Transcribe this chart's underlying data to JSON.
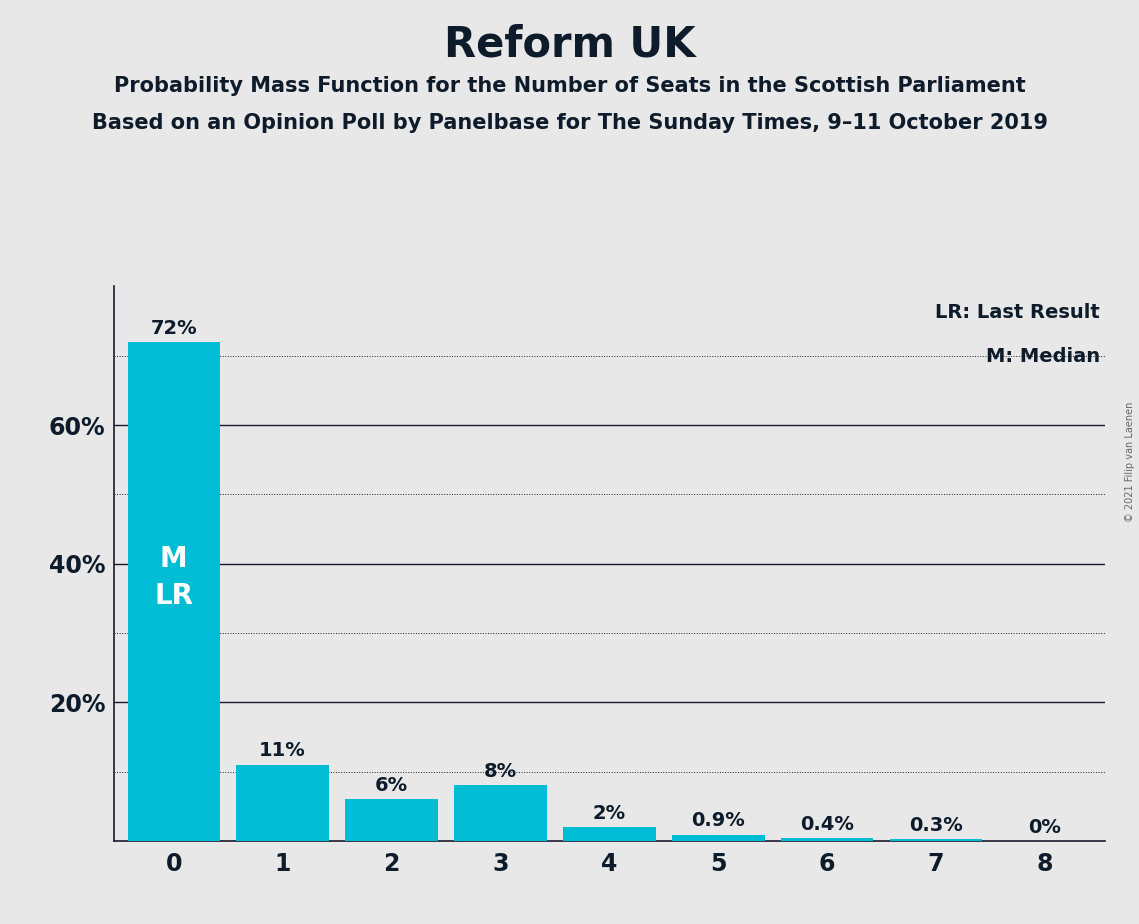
{
  "title": "Reform UK",
  "subtitle1": "Probability Mass Function for the Number of Seats in the Scottish Parliament",
  "subtitle2": "Based on an Opinion Poll by Panelbase for The Sunday Times, 9–11 October 2019",
  "copyright": "© 2021 Filip van Laenen",
  "categories": [
    0,
    1,
    2,
    3,
    4,
    5,
    6,
    7,
    8
  ],
  "values": [
    72,
    11,
    6,
    8,
    2,
    0.9,
    0.4,
    0.3,
    0
  ],
  "bar_color": "#00BCD4",
  "background_color": "#E8E8E8",
  "title_color": "#0D1B2A",
  "label_color": "#0D1B2A",
  "bar_text_color": "#FFFFFF",
  "ylim": [
    0,
    80
  ],
  "yticks_solid": [
    20,
    40,
    60
  ],
  "yticks_dotted": [
    10,
    30,
    50,
    70
  ],
  "median": 0,
  "last_result": 0,
  "legend_lr": "LR: Last Result",
  "legend_m": "M: Median",
  "title_fontsize": 30,
  "subtitle_fontsize": 15,
  "tick_fontsize": 17,
  "bar_label_fontsize": 14,
  "bar_inner_fontsize": 20
}
